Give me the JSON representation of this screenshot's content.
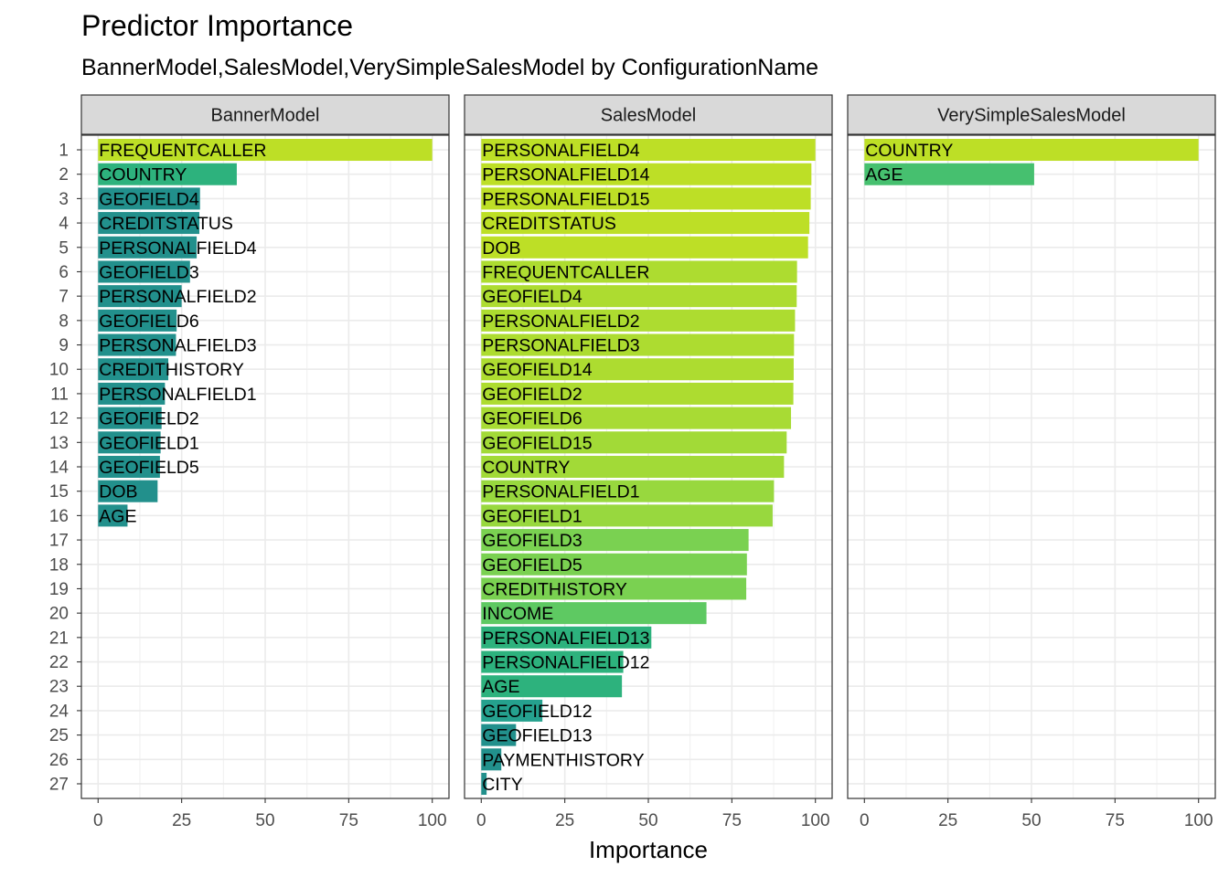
{
  "chart_data": {
    "type": "bar",
    "orientation": "horizontal",
    "title": "Predictor Importance",
    "subtitle": "BannerModel,SalesModel,VerySimpleSalesModel by ConfigurationName",
    "xlabel": "Importance",
    "ylabel": "",
    "xlim": [
      0,
      100
    ],
    "xticks": [
      0,
      25,
      50,
      75,
      100
    ],
    "rank_labels": [
      "1",
      "2",
      "3",
      "4",
      "5",
      "6",
      "7",
      "8",
      "9",
      "10",
      "11",
      "12",
      "13",
      "14",
      "15",
      "16",
      "17",
      "18",
      "19",
      "20",
      "21",
      "22",
      "23",
      "24",
      "25",
      "26",
      "27"
    ],
    "grid": true,
    "facets": [
      {
        "name": "BannerModel",
        "predictors": [
          "FREQUENTCALLER",
          "COUNTRY",
          "GEOFIELD4",
          "CREDITSTATUS",
          "PERSONALFIELD4",
          "GEOFIELD3",
          "PERSONALFIELD2",
          "GEOFIELD6",
          "PERSONALFIELD3",
          "CREDITHISTORY",
          "PERSONALFIELD1",
          "GEOFIELD2",
          "GEOFIELD1",
          "GEOFIELD5",
          "DOB",
          "AGE"
        ],
        "values": [
          100,
          41.5,
          30.5,
          30.3,
          29.5,
          27.5,
          25,
          23.5,
          23.3,
          21,
          20,
          19,
          18.7,
          18.5,
          17.8,
          8.8
        ],
        "colors": [
          "#bddf26",
          "#2db27d",
          "#22908c",
          "#22908c",
          "#22908c",
          "#22908c",
          "#22908c",
          "#22908c",
          "#22908c",
          "#22908c",
          "#22908c",
          "#22908c",
          "#22908c",
          "#22908c",
          "#22908c",
          "#22908c"
        ]
      },
      {
        "name": "SalesModel",
        "predictors": [
          "PERSONALFIELD4",
          "PERSONALFIELD14",
          "PERSONALFIELD15",
          "CREDITSTATUS",
          "DOB",
          "FREQUENTCALLER",
          "GEOFIELD4",
          "PERSONALFIELD2",
          "PERSONALFIELD3",
          "GEOFIELD14",
          "GEOFIELD2",
          "GEOFIELD6",
          "GEOFIELD15",
          "COUNTRY",
          "PERSONALFIELD1",
          "GEOFIELD1",
          "GEOFIELD3",
          "GEOFIELD5",
          "CREDITHISTORY",
          "INCOME",
          "PERSONALFIELD13",
          "PERSONALFIELD12",
          "AGE",
          "GEOFIELD12",
          "GEOFIELD13",
          "PAYMENTHISTORY",
          "CITY"
        ],
        "values": [
          100,
          98.8,
          98.6,
          98.2,
          97.8,
          94.5,
          94.4,
          93.9,
          93.6,
          93.5,
          93.4,
          92.7,
          91.4,
          90.6,
          87.6,
          87.2,
          80,
          79.5,
          79.3,
          67.4,
          50.9,
          42.5,
          42.1,
          18.3,
          10.4,
          6,
          1.6
        ],
        "colors": [
          "#bddf26",
          "#bddf26",
          "#bddf26",
          "#bddf26",
          "#bddf26",
          "#addc30",
          "#addc30",
          "#addc30",
          "#addc30",
          "#addc30",
          "#addc30",
          "#a8db34",
          "#a2da37",
          "#a2da37",
          "#98d83e",
          "#98d83e",
          "#7ad151",
          "#7ad151",
          "#7ad151",
          "#5ec962",
          "#2db27d",
          "#2db27d",
          "#2db27d",
          "#25a18e",
          "#22908c",
          "#22908c",
          "#22908c"
        ]
      },
      {
        "name": "VerySimpleSalesModel",
        "predictors": [
          "COUNTRY",
          "AGE"
        ],
        "values": [
          100,
          50.8
        ],
        "colors": [
          "#bddf26",
          "#46c06f"
        ]
      }
    ]
  }
}
